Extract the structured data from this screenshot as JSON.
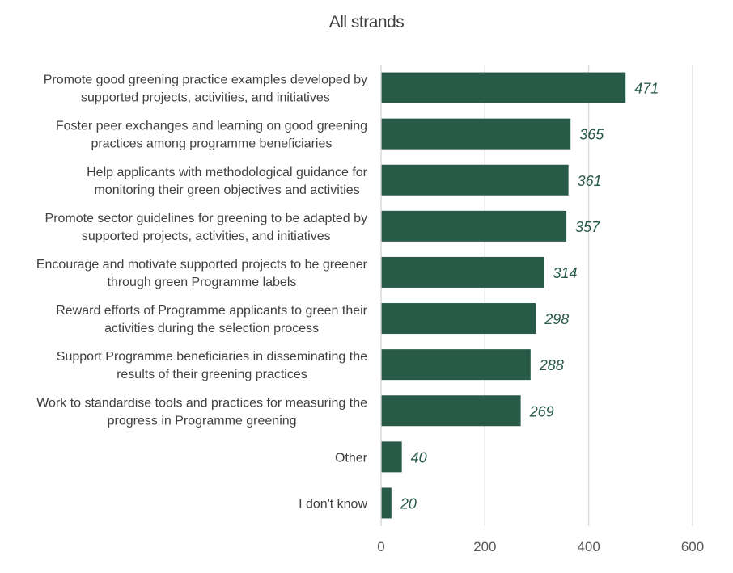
{
  "chart_data": {
    "type": "bar",
    "orientation": "horizontal",
    "title": "All strands",
    "categories": [
      [
        "Promote good greening practice examples developed by",
        "supported projects, activities, and initiatives"
      ],
      [
        "Foster peer exchanges and learning on good greening",
        "practices among programme beneficiaries"
      ],
      [
        "Help applicants with methodological guidance for",
        "monitoring their green objectives and activities"
      ],
      [
        "Promote sector guidelines for greening to be adapted by",
        "supported projects, activities, and initiatives"
      ],
      [
        "Encourage and motivate supported projects to be greener",
        "through green Programme labels"
      ],
      [
        "Reward efforts of Programme applicants to green their",
        "activities during the selection process"
      ],
      [
        "Support Programme beneficiaries in disseminating the",
        "results of their greening practices"
      ],
      [
        "Work to standardise tools and practices for measuring the",
        "progress in Programme greening"
      ],
      [
        "Other"
      ],
      [
        "I don't know"
      ]
    ],
    "values": [
      471,
      365,
      361,
      357,
      314,
      298,
      288,
      269,
      40,
      20
    ],
    "xlim": [
      0,
      600
    ],
    "xticks": [
      0,
      200,
      400,
      600
    ],
    "grid": true,
    "colors": {
      "bar": "#285a48",
      "label": "#285a48",
      "grid": "#d9d9d9",
      "text": "#404040"
    }
  }
}
